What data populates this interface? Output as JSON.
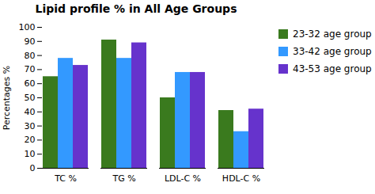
{
  "chart_data": {
    "type": "bar",
    "title": "Lipid profile % in All Age Groups",
    "ylabel": "Percentages %",
    "categories": [
      "TC %",
      "TG %",
      "LDL-C %",
      "HDL-C %"
    ],
    "series": [
      {
        "name": "23-32 age group",
        "color": "#3a7a1e",
        "values": [
          65,
          91,
          50,
          41
        ]
      },
      {
        "name": "33-42 age group",
        "color": "#3399ff",
        "values": [
          78,
          78,
          68,
          26
        ]
      },
      {
        "name": "43-53 age group",
        "color": "#6633cc",
        "values": [
          73,
          89,
          68,
          42
        ]
      }
    ],
    "ylim": [
      0,
      100
    ],
    "yticks": [
      0,
      10,
      20,
      30,
      40,
      50,
      60,
      70,
      80,
      90,
      100
    ],
    "grid": false,
    "legend": "right"
  }
}
